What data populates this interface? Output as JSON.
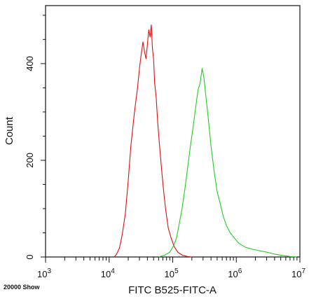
{
  "chart_data": {
    "type": "line",
    "xlabel": "FITC B525-FITC-A",
    "ylabel": "Count",
    "x_scale": "log",
    "xlim": [
      1000,
      10000000
    ],
    "ylim": [
      0,
      520
    ],
    "x_ticks": [
      {
        "value": 1000,
        "base": "10",
        "exp": "3"
      },
      {
        "value": 10000,
        "base": "10",
        "exp": "4"
      },
      {
        "value": 100000,
        "base": "10",
        "exp": "5"
      },
      {
        "value": 1000000,
        "base": "10",
        "exp": "6"
      },
      {
        "value": 10000000,
        "base": "10",
        "exp": "7"
      }
    ],
    "y_ticks": [
      {
        "value": 0,
        "label": "0"
      },
      {
        "value": 200,
        "label": "200"
      },
      {
        "value": 400,
        "label": "400"
      }
    ],
    "grid": false,
    "legend": "none",
    "footer_note": "20000 Show",
    "series": [
      {
        "color": "#e01010",
        "x": [
          12000,
          13000,
          14500,
          16000,
          18000,
          20000,
          22000,
          25000,
          28000,
          30000,
          32000,
          34000,
          36000,
          38000,
          40000,
          42000,
          44000,
          46000,
          48000,
          50000,
          52000,
          55000,
          58000,
          62000,
          67000,
          72000,
          78000,
          85000,
          95000,
          105000,
          120000,
          140000,
          170000,
          200000
        ],
        "y": [
          0,
          5,
          18,
          45,
          90,
          160,
          230,
          300,
          350,
          390,
          420,
          445,
          425,
          410,
          440,
          470,
          455,
          480,
          430,
          410,
          360,
          330,
          280,
          230,
          180,
          135,
          95,
          60,
          38,
          22,
          10,
          4,
          1,
          0
        ]
      },
      {
        "color": "#22cc22",
        "x": [
          60000,
          75000,
          90000,
          105000,
          115000,
          125000,
          140000,
          155000,
          170000,
          190000,
          210000,
          230000,
          250000,
          270000,
          290000,
          310000,
          330000,
          360000,
          400000,
          450000,
          500000,
          560000,
          620000,
          700000,
          800000,
          950000,
          1100000,
          1400000,
          1800000,
          2300000,
          3000000,
          4000000,
          5500000,
          7000000,
          9000000
        ],
        "y": [
          0,
          4,
          10,
          25,
          40,
          65,
          100,
          140,
          180,
          230,
          270,
          310,
          345,
          360,
          390,
          370,
          335,
          290,
          230,
          175,
          135,
          110,
          85,
          65,
          50,
          38,
          28,
          20,
          16,
          13,
          10,
          6,
          3,
          1,
          0
        ]
      }
    ]
  }
}
